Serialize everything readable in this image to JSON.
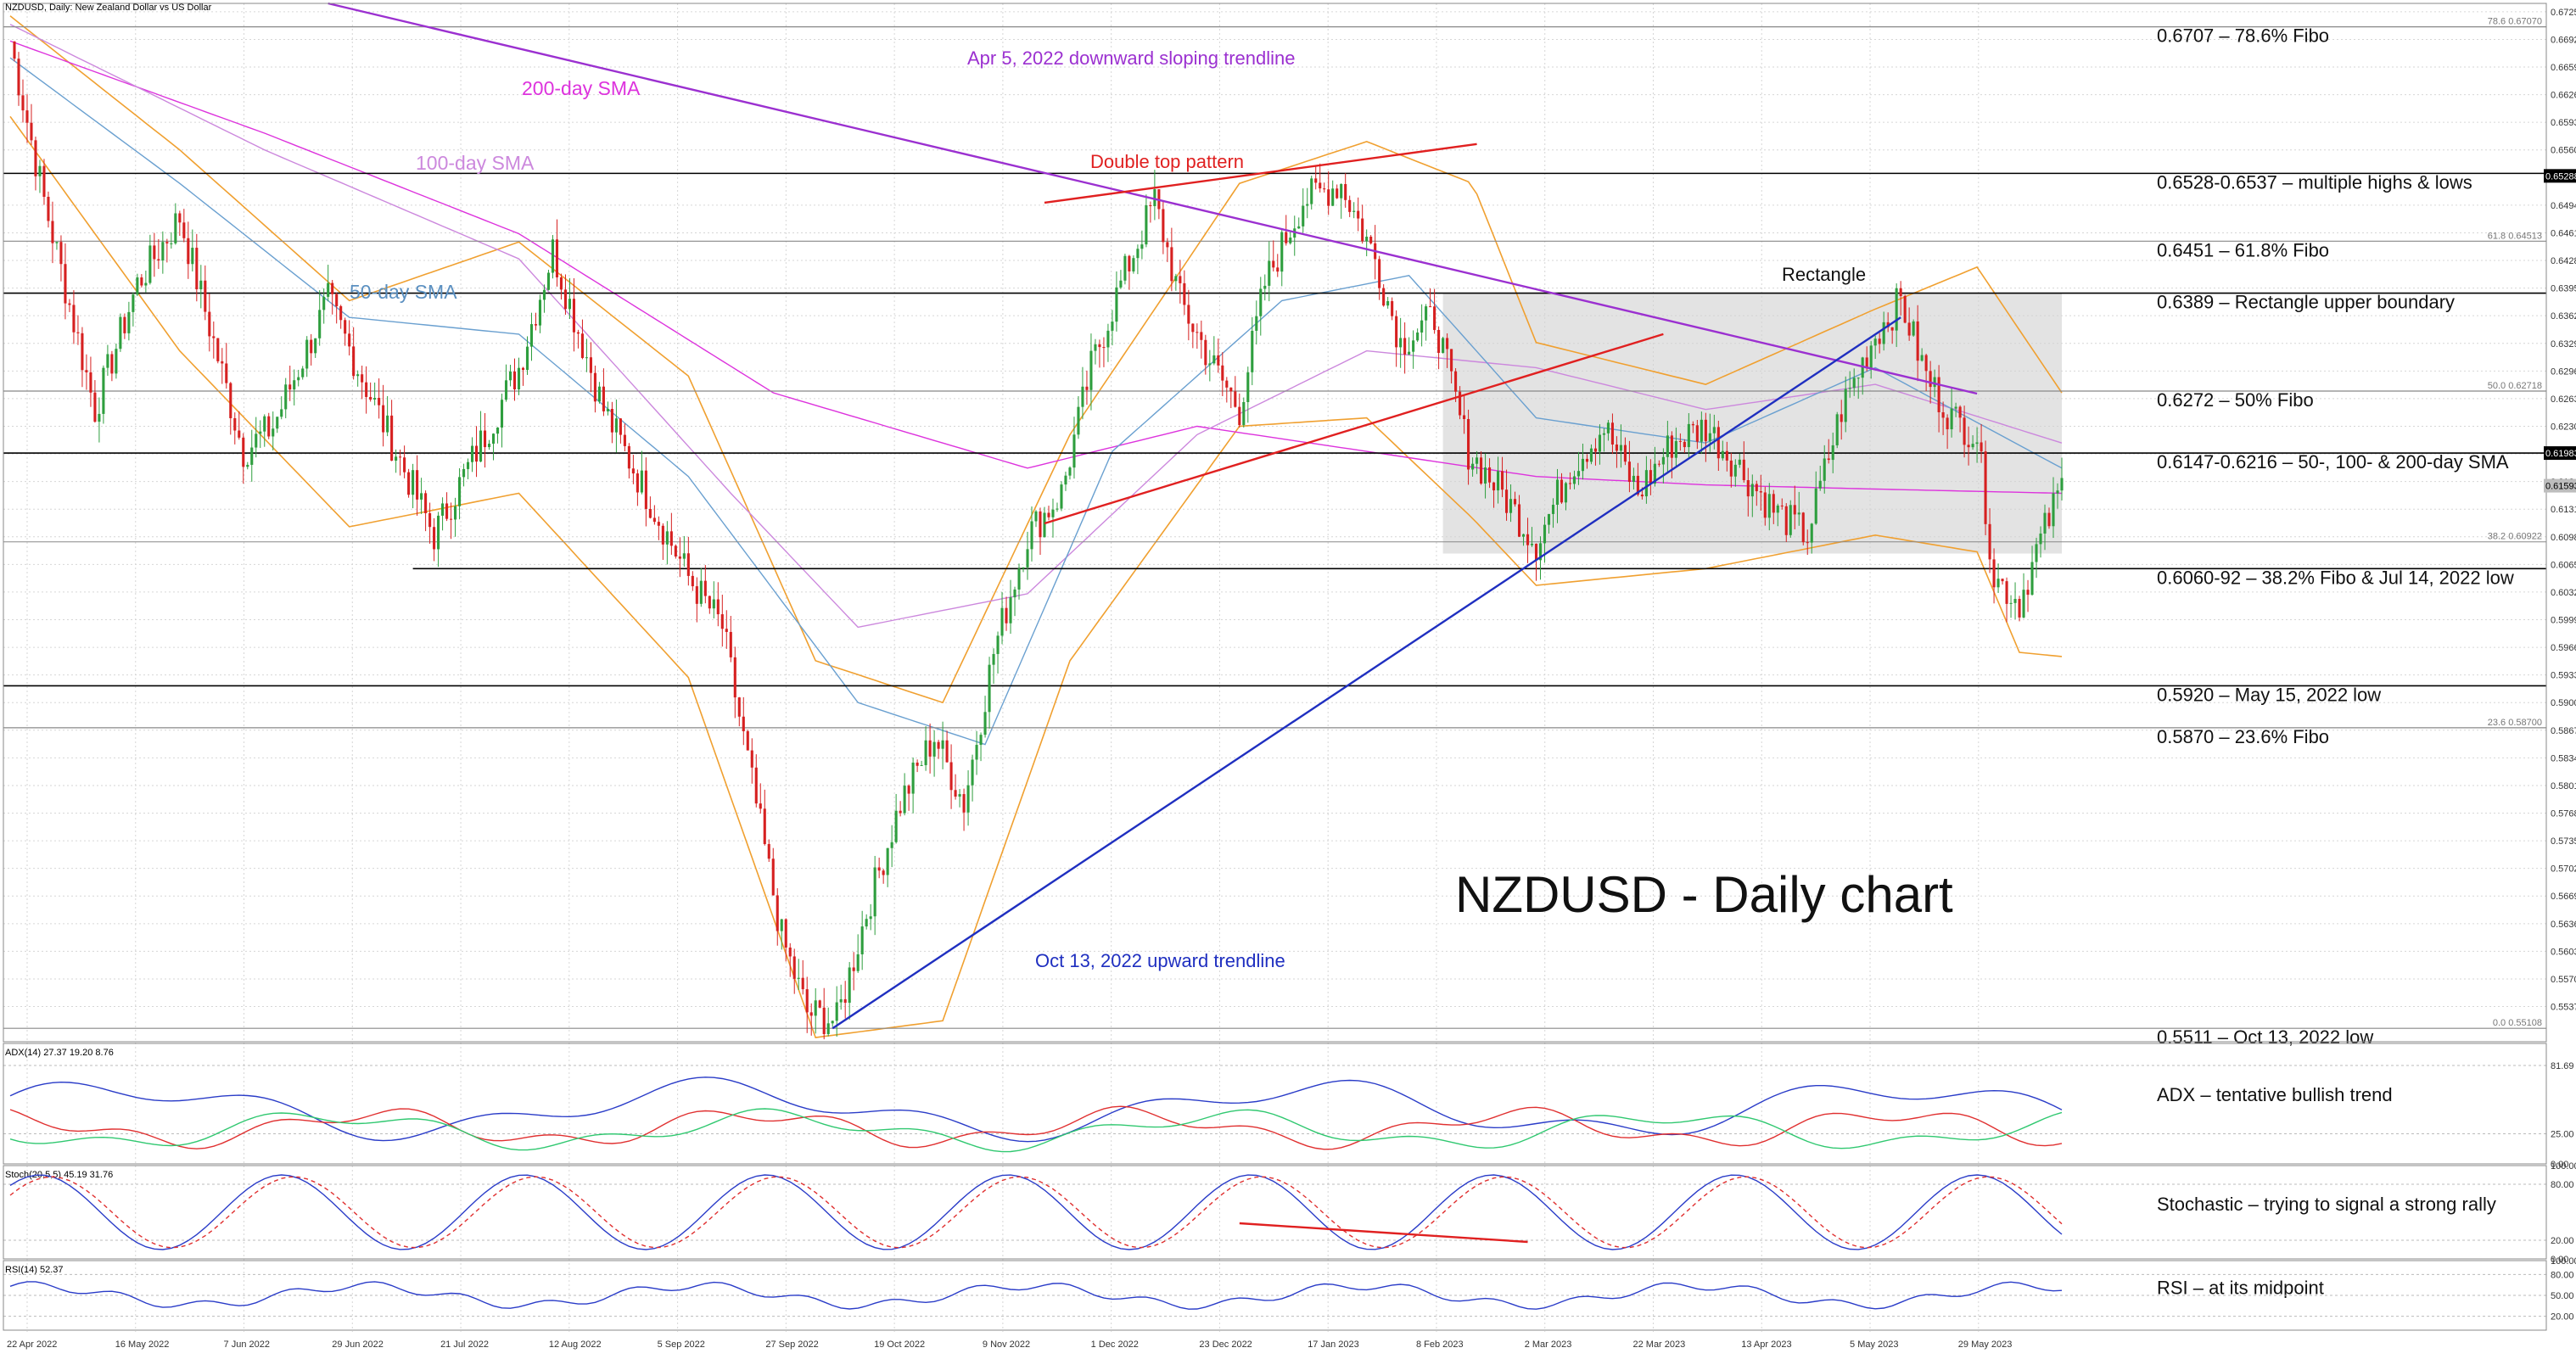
{
  "chart_data": {
    "type": "candlestick",
    "title": "NZDUSD, Daily:  New Zealand Dollar vs US Dollar",
    "big_title": "NZDUSD - Daily chart",
    "ylim": [
      0.5495,
      0.6735
    ],
    "x_ticks": [
      "22 Apr 2022",
      "16 May 2022",
      "7 Jun 2022",
      "29 Jun 2022",
      "21 Jul 2022",
      "12 Aug 2022",
      "5 Sep 2022",
      "27 Sep 2022",
      "19 Oct 2022",
      "9 Nov 2022",
      "1 Dec 2022",
      "23 Dec 2022",
      "17 Jan 2023",
      "8 Feb 2023",
      "2 Mar 2023",
      "22 Mar 2023",
      "13 Apr 2023",
      "5 May 2023",
      "29 May 2023"
    ],
    "y_ticks": [
      "0.67250",
      "0.66920",
      "0.66590",
      "0.66260",
      "0.65930",
      "0.65600",
      "0.64940",
      "0.64610",
      "0.64280",
      "0.63950",
      "0.63620",
      "0.63290",
      "0.62960",
      "0.62630",
      "0.62300",
      "0.61970",
      "0.61640",
      "0.61310",
      "0.60980",
      "0.60650",
      "0.60320",
      "0.59990",
      "0.59660",
      "0.59330",
      "0.59000",
      "0.58670",
      "0.58340",
      "0.58010",
      "0.57680",
      "0.57350",
      "0.57020",
      "0.56690",
      "0.56360",
      "0.56030",
      "0.55700",
      "0.55370"
    ],
    "price_tags": {
      "current": "0.61593",
      "upper": "0.61983",
      "top_high": "0.65288"
    },
    "levels": [
      {
        "value": 0.6707,
        "label": "0.6707 – 78.6% Fibo",
        "fib_tag": "78.6 0.67070"
      },
      {
        "value": 0.6532,
        "label": "0.6528-0.6537 – multiple highs & lows",
        "fib_tag": ""
      },
      {
        "value": 0.6451,
        "label": "0.6451 – 61.8% Fibo",
        "fib_tag": "61.8 0.64513"
      },
      {
        "value": 0.6389,
        "label": "0.6389 – Rectangle upper boundary",
        "fib_tag": ""
      },
      {
        "value": 0.6272,
        "label": "0.6272 – 50% Fibo",
        "fib_tag": "50.0 0.62718"
      },
      {
        "value": 0.6198,
        "label": "0.6147-0.6216 – 50-, 100- & 200-day SMA",
        "fib_tag": ""
      },
      {
        "value": 0.6092,
        "label": "",
        "fib_tag": "38.2 0.60922"
      },
      {
        "value": 0.606,
        "label": "0.6060-92 – 38.2% Fibo & Jul 14, 2022 low",
        "fib_tag": ""
      },
      {
        "value": 0.592,
        "label": "0.5920 – May 15, 2022 low",
        "fib_tag": ""
      },
      {
        "value": 0.587,
        "label": "0.5870 – 23.6% Fibo",
        "fib_tag": "23.6 0.58700"
      },
      {
        "value": 0.5511,
        "label": "0.5511 – Oct 13, 2022 low",
        "fib_tag": "0.0 0.55108"
      }
    ],
    "annotations": {
      "sma200": "200-day SMA",
      "sma100": "100-day SMA",
      "sma50": "50-day SMA",
      "down_trendline": "Apr 5, 2022 downward sloping trendline",
      "double_top": "Double top pattern",
      "rectangle": "Rectangle",
      "up_trendline": "Oct 13, 2022 upward trendline"
    },
    "anchors": [
      [
        0,
        0.669
      ],
      [
        8,
        0.65
      ],
      [
        20,
        0.625
      ],
      [
        30,
        0.64
      ],
      [
        40,
        0.648
      ],
      [
        55,
        0.62
      ],
      [
        62,
        0.623
      ],
      [
        75,
        0.638
      ],
      [
        82,
        0.63
      ],
      [
        100,
        0.61
      ],
      [
        110,
        0.62
      ],
      [
        120,
        0.63
      ],
      [
        128,
        0.644
      ],
      [
        140,
        0.625
      ],
      [
        150,
        0.615
      ],
      [
        160,
        0.605
      ],
      [
        168,
        0.599
      ],
      [
        174,
        0.583
      ],
      [
        182,
        0.562
      ],
      [
        188,
        0.553
      ],
      [
        195,
        0.552
      ],
      [
        202,
        0.565
      ],
      [
        210,
        0.578
      ],
      [
        218,
        0.586
      ],
      [
        225,
        0.578
      ],
      [
        232,
        0.596
      ],
      [
        240,
        0.61
      ],
      [
        248,
        0.615
      ],
      [
        255,
        0.63
      ],
      [
        262,
        0.64
      ],
      [
        270,
        0.65
      ],
      [
        276,
        0.638
      ],
      [
        284,
        0.63
      ],
      [
        290,
        0.625
      ],
      [
        296,
        0.64
      ],
      [
        305,
        0.65
      ],
      [
        314,
        0.652
      ],
      [
        322,
        0.643
      ],
      [
        328,
        0.633
      ],
      [
        336,
        0.636
      ],
      [
        344,
        0.62
      ],
      [
        352,
        0.615
      ],
      [
        360,
        0.609
      ],
      [
        368,
        0.618
      ],
      [
        376,
        0.623
      ],
      [
        384,
        0.615
      ],
      [
        392,
        0.621
      ],
      [
        400,
        0.623
      ],
      [
        408,
        0.618
      ],
      [
        416,
        0.613
      ],
      [
        424,
        0.61
      ],
      [
        432,
        0.625
      ],
      [
        440,
        0.634
      ],
      [
        446,
        0.638
      ],
      [
        452,
        0.629
      ],
      [
        458,
        0.624
      ],
      [
        464,
        0.622
      ],
      [
        468,
        0.605
      ],
      [
        474,
        0.602
      ],
      [
        478,
        0.608
      ],
      [
        484,
        0.6159
      ]
    ],
    "sma200": [
      [
        0,
        0.669
      ],
      [
        60,
        0.658
      ],
      [
        120,
        0.646
      ],
      [
        180,
        0.627
      ],
      [
        240,
        0.618
      ],
      [
        280,
        0.623
      ],
      [
        320,
        0.62
      ],
      [
        360,
        0.617
      ],
      [
        400,
        0.616
      ],
      [
        440,
        0.6155
      ],
      [
        484,
        0.615
      ]
    ],
    "sma100": [
      [
        0,
        0.671
      ],
      [
        60,
        0.656
      ],
      [
        120,
        0.643
      ],
      [
        170,
        0.615
      ],
      [
        200,
        0.599
      ],
      [
        240,
        0.603
      ],
      [
        280,
        0.622
      ],
      [
        320,
        0.632
      ],
      [
        360,
        0.63
      ],
      [
        400,
        0.625
      ],
      [
        440,
        0.628
      ],
      [
        484,
        0.621
      ]
    ],
    "sma50": [
      [
        0,
        0.667
      ],
      [
        40,
        0.652
      ],
      [
        80,
        0.636
      ],
      [
        120,
        0.634
      ],
      [
        160,
        0.617
      ],
      [
        200,
        0.59
      ],
      [
        230,
        0.585
      ],
      [
        260,
        0.62
      ],
      [
        300,
        0.638
      ],
      [
        330,
        0.641
      ],
      [
        360,
        0.624
      ],
      [
        400,
        0.621
      ],
      [
        440,
        0.63
      ],
      [
        484,
        0.618
      ]
    ],
    "bb_upper": [
      [
        0,
        0.672
      ],
      [
        40,
        0.656
      ],
      [
        80,
        0.638
      ],
      [
        120,
        0.645
      ],
      [
        160,
        0.629
      ],
      [
        190,
        0.595
      ],
      [
        220,
        0.59
      ],
      [
        250,
        0.622
      ],
      [
        290,
        0.652
      ],
      [
        320,
        0.657
      ],
      [
        345,
        0.652
      ],
      [
        360,
        0.633
      ],
      [
        400,
        0.628
      ],
      [
        440,
        0.637
      ],
      [
        464,
        0.642
      ],
      [
        484,
        0.627
      ]
    ],
    "bb_lower": [
      [
        0,
        0.66
      ],
      [
        40,
        0.632
      ],
      [
        80,
        0.611
      ],
      [
        120,
        0.615
      ],
      [
        160,
        0.593
      ],
      [
        190,
        0.55
      ],
      [
        220,
        0.552
      ],
      [
        250,
        0.595
      ],
      [
        290,
        0.623
      ],
      [
        320,
        0.624
      ],
      [
        345,
        0.612
      ],
      [
        360,
        0.604
      ],
      [
        400,
        0.606
      ],
      [
        440,
        0.61
      ],
      [
        464,
        0.608
      ],
      [
        474,
        0.596
      ],
      [
        484,
        0.5955
      ]
    ],
    "adx": {
      "label": "ADX(14) 27.37 19.20 8.76",
      "ticks": [
        "81.69",
        "25.00",
        "0.00"
      ],
      "annotation": "ADX – tentative bullish trend"
    },
    "stoch": {
      "label": "Stoch(20,5,5) 45.19 31.76",
      "ticks": [
        "100.00",
        "80.00",
        "20.00",
        "0.00"
      ],
      "annotation": "Stochastic – trying to signal a strong rally"
    },
    "rsi": {
      "label": "RSI(14) 52.37",
      "ticks": [
        "100.00",
        "80.00",
        "50.00",
        "20.00"
      ],
      "annotation": "RSI – at its midpoint"
    }
  }
}
